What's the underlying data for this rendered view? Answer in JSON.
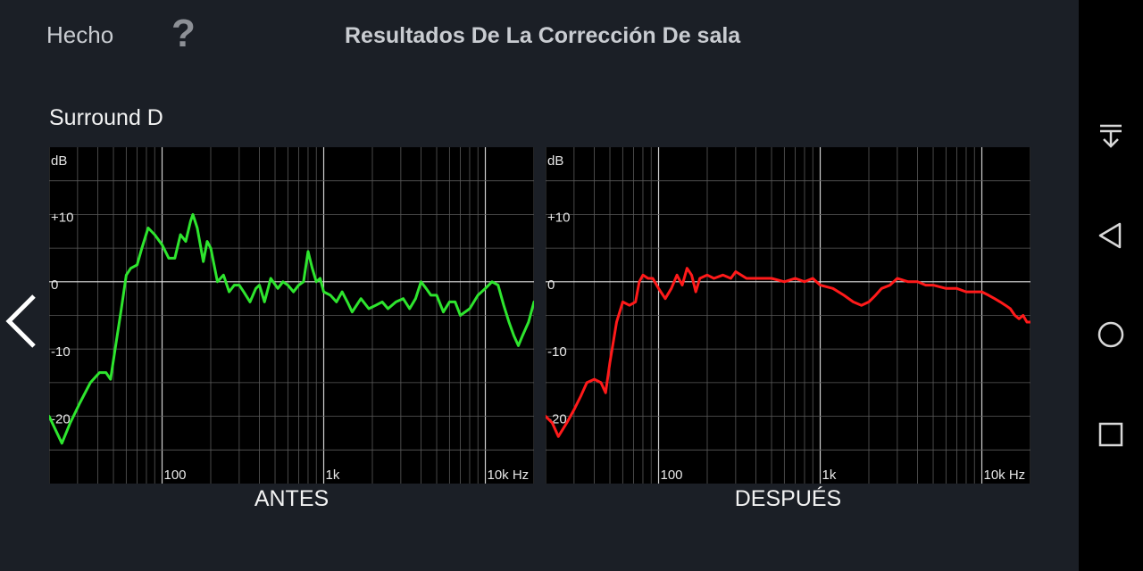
{
  "header": {
    "done_label": "Hecho",
    "help_label": "?",
    "title": "Resultados De La Corrección De sala"
  },
  "channel_name": "Surround D",
  "navbar_icons": [
    "download-icon",
    "back-triangle-icon",
    "home-circle-icon",
    "recents-square-icon"
  ],
  "colors": {
    "before": "#2ee52e",
    "after": "#ff1a1a",
    "background": "#1b1f26",
    "grid": "#7a7a7a"
  },
  "chart_data": [
    {
      "type": "line",
      "caption": "ANTES",
      "ylabel": "dB",
      "yticks": [
        "+10",
        "0",
        "-10",
        "-20"
      ],
      "xticks": [
        "100",
        "1k",
        "10k Hz"
      ],
      "xscale": "log",
      "xlim": [
        20,
        20000
      ],
      "ylim": [
        -30,
        20
      ],
      "series": [
        {
          "color": "#2ee52e",
          "points": [
            [
              20,
              -20
            ],
            [
              24,
              -24
            ],
            [
              27,
              -21
            ],
            [
              31,
              -18
            ],
            [
              36,
              -15
            ],
            [
              41,
              -13.5
            ],
            [
              45,
              -13.5
            ],
            [
              48,
              -14.5
            ],
            [
              52,
              -9
            ],
            [
              56,
              -4
            ],
            [
              60,
              1
            ],
            [
              64,
              2
            ],
            [
              70,
              2.5
            ],
            [
              75,
              5
            ],
            [
              82,
              8
            ],
            [
              90,
              7
            ],
            [
              100,
              5.5
            ],
            [
              110,
              3.5
            ],
            [
              120,
              3.5
            ],
            [
              130,
              7
            ],
            [
              140,
              6
            ],
            [
              150,
              9
            ],
            [
              155,
              10
            ],
            [
              165,
              8
            ],
            [
              180,
              3
            ],
            [
              190,
              6
            ],
            [
              200,
              5
            ],
            [
              220,
              0
            ],
            [
              240,
              1
            ],
            [
              260,
              -1.5
            ],
            [
              280,
              -0.5
            ],
            [
              300,
              -0.5
            ],
            [
              320,
              -1.5
            ],
            [
              350,
              -3
            ],
            [
              380,
              -1
            ],
            [
              400,
              -0.5
            ],
            [
              430,
              -3
            ],
            [
              470,
              0.5
            ],
            [
              520,
              -1
            ],
            [
              560,
              0
            ],
            [
              600,
              -0.5
            ],
            [
              650,
              -1.5
            ],
            [
              700,
              -0.5
            ],
            [
              750,
              0
            ],
            [
              800,
              4.5
            ],
            [
              850,
              2
            ],
            [
              900,
              0
            ],
            [
              950,
              0.5
            ],
            [
              1000,
              -1.5
            ],
            [
              1100,
              -2
            ],
            [
              1200,
              -3
            ],
            [
              1300,
              -1.5
            ],
            [
              1400,
              -3
            ],
            [
              1500,
              -4.5
            ],
            [
              1700,
              -2.5
            ],
            [
              1900,
              -4
            ],
            [
              2100,
              -3.5
            ],
            [
              2300,
              -3
            ],
            [
              2500,
              -4
            ],
            [
              2800,
              -3
            ],
            [
              3100,
              -2.5
            ],
            [
              3400,
              -4
            ],
            [
              3700,
              -2.5
            ],
            [
              4000,
              0
            ],
            [
              4300,
              -1
            ],
            [
              4600,
              -2
            ],
            [
              5000,
              -2
            ],
            [
              5500,
              -4.5
            ],
            [
              6000,
              -3
            ],
            [
              6500,
              -3
            ],
            [
              7000,
              -5
            ],
            [
              8000,
              -4
            ],
            [
              9000,
              -2
            ],
            [
              10000,
              -1
            ],
            [
              11000,
              0
            ],
            [
              12000,
              -0.5
            ],
            [
              13000,
              -3.5
            ],
            [
              14000,
              -6
            ],
            [
              15000,
              -8
            ],
            [
              16000,
              -9.5
            ],
            [
              17000,
              -8
            ],
            [
              18500,
              -6
            ],
            [
              20000,
              -3
            ]
          ]
        }
      ]
    },
    {
      "type": "line",
      "caption": "DESPUÉS",
      "ylabel": "dB",
      "yticks": [
        "+10",
        "0",
        "-10",
        "-20"
      ],
      "xticks": [
        "100",
        "1k",
        "10k Hz"
      ],
      "xscale": "log",
      "xlim": [
        20,
        20000
      ],
      "ylim": [
        -30,
        20
      ],
      "series": [
        {
          "color": "#ff1a1a",
          "points": [
            [
              20,
              -20
            ],
            [
              22,
              -21
            ],
            [
              24,
              -23
            ],
            [
              27,
              -21
            ],
            [
              30,
              -19
            ],
            [
              33,
              -17
            ],
            [
              36,
              -15
            ],
            [
              40,
              -14.5
            ],
            [
              44,
              -15
            ],
            [
              47,
              -16.5
            ],
            [
              50,
              -12
            ],
            [
              55,
              -6
            ],
            [
              60,
              -3
            ],
            [
              66,
              -3.5
            ],
            [
              72,
              -3
            ],
            [
              76,
              0
            ],
            [
              80,
              1
            ],
            [
              86,
              0.5
            ],
            [
              92,
              0.5
            ],
            [
              100,
              -1
            ],
            [
              110,
              -2.5
            ],
            [
              120,
              -1
            ],
            [
              130,
              1
            ],
            [
              140,
              -0.5
            ],
            [
              150,
              2
            ],
            [
              160,
              1
            ],
            [
              170,
              -1.5
            ],
            [
              180,
              0.5
            ],
            [
              200,
              1
            ],
            [
              220,
              0.5
            ],
            [
              250,
              1
            ],
            [
              280,
              0.5
            ],
            [
              300,
              1.5
            ],
            [
              350,
              0.5
            ],
            [
              400,
              0.5
            ],
            [
              450,
              0.5
            ],
            [
              500,
              0.5
            ],
            [
              600,
              0
            ],
            [
              700,
              0.5
            ],
            [
              800,
              0
            ],
            [
              900,
              0.5
            ],
            [
              1000,
              -0.5
            ],
            [
              1200,
              -1
            ],
            [
              1400,
              -2
            ],
            [
              1600,
              -3
            ],
            [
              1800,
              -3.5
            ],
            [
              2000,
              -3
            ],
            [
              2200,
              -2
            ],
            [
              2400,
              -1
            ],
            [
              2700,
              -0.5
            ],
            [
              3000,
              0.5
            ],
            [
              3500,
              0
            ],
            [
              4000,
              0
            ],
            [
              4500,
              -0.5
            ],
            [
              5000,
              -0.5
            ],
            [
              6000,
              -1
            ],
            [
              7000,
              -1
            ],
            [
              8000,
              -1.5
            ],
            [
              9000,
              -1.5
            ],
            [
              10000,
              -1.5
            ],
            [
              11000,
              -2
            ],
            [
              12000,
              -2.5
            ],
            [
              13000,
              -3
            ],
            [
              14000,
              -3.5
            ],
            [
              15000,
              -4
            ],
            [
              16000,
              -5
            ],
            [
              17000,
              -5.5
            ],
            [
              18000,
              -5
            ],
            [
              19000,
              -6
            ],
            [
              20000,
              -6
            ]
          ]
        }
      ]
    }
  ]
}
